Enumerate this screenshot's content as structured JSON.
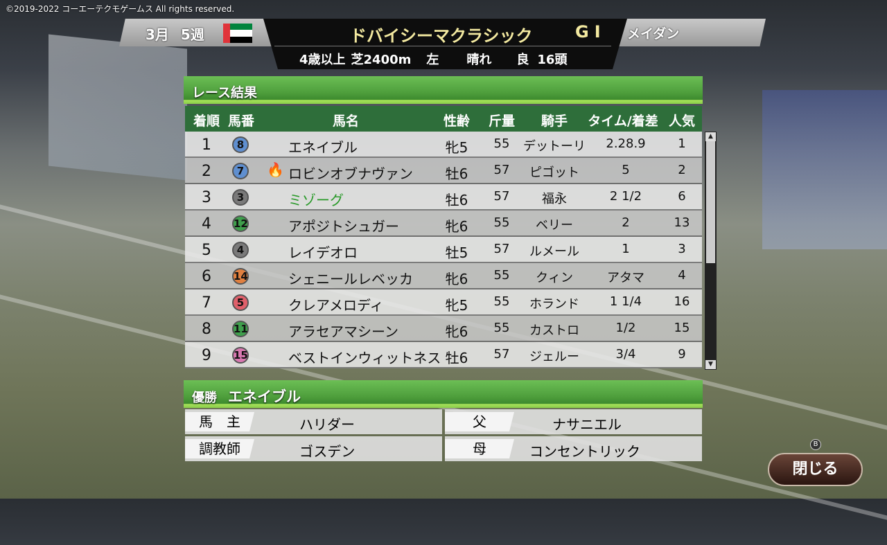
{
  "copyright": "©2019-2022 コーエーテクモゲームス All rights reserved.",
  "header": {
    "month": "3月",
    "week": "5週",
    "race_name": "ドバイシーマクラシック",
    "grade": "GI",
    "venue": "メイダン",
    "conditions": [
      "4歳以上",
      "芝2400m",
      "左",
      "晴れ",
      "良",
      "16頭"
    ]
  },
  "results": {
    "title": "レース結果",
    "columns": [
      "着順",
      "馬番",
      "馬名",
      "性齢",
      "斤量",
      "騎手",
      "タイム/着差",
      "人気"
    ],
    "rows": [
      {
        "rank": "1",
        "num": "8",
        "num_color": "#5f8fd0",
        "name": "エネイブル",
        "sex_age": "牝5",
        "weight": "55",
        "jockey": "デットーリ",
        "time": "2.28.9",
        "pop": "1"
      },
      {
        "rank": "2",
        "num": "7",
        "num_color": "#5f8fd0",
        "name": "ロビンオブナヴァン",
        "sex_age": "牡6",
        "weight": "57",
        "jockey": "ピゴット",
        "time": "5",
        "pop": "2",
        "icon": "fire-icon"
      },
      {
        "rank": "3",
        "num": "3",
        "num_color": "#7a7a7a",
        "name": "ミゾーグ",
        "name_color": "#2a9a2a",
        "sex_age": "牡6",
        "weight": "57",
        "jockey": "福永",
        "time": "2 1/2",
        "pop": "6"
      },
      {
        "rank": "4",
        "num": "12",
        "num_color": "#3f9f4c",
        "name": "アポジトシュガー",
        "sex_age": "牝6",
        "weight": "55",
        "jockey": "ベリー",
        "time": "2",
        "pop": "13"
      },
      {
        "rank": "5",
        "num": "4",
        "num_color": "#7a7a7a",
        "name": "レイデオロ",
        "sex_age": "牡5",
        "weight": "57",
        "jockey": "ルメール",
        "time": "1",
        "pop": "3"
      },
      {
        "rank": "6",
        "num": "14",
        "num_color": "#e08040",
        "name": "シェニールレベッカ",
        "sex_age": "牝6",
        "weight": "55",
        "jockey": "クィン",
        "time": "アタマ",
        "pop": "4"
      },
      {
        "rank": "7",
        "num": "5",
        "num_color": "#e0606a",
        "name": "クレアメロディ",
        "sex_age": "牝5",
        "weight": "55",
        "jockey": "ホランド",
        "time": "1 1/4",
        "pop": "16"
      },
      {
        "rank": "8",
        "num": "11",
        "num_color": "#3f9f4c",
        "name": "アラセアマシーン",
        "sex_age": "牝6",
        "weight": "55",
        "jockey": "カストロ",
        "time": "1/2",
        "pop": "15"
      },
      {
        "rank": "9",
        "num": "15",
        "num_color": "#d878b0",
        "name": "ベストインウィットネス",
        "sex_age": "牡6",
        "weight": "57",
        "jockey": "ジェルー",
        "time": "3/4",
        "pop": "9"
      }
    ]
  },
  "winner": {
    "label": "優勝",
    "name": "エネイブル",
    "owner_label": "馬　主",
    "owner": "ハリダー",
    "trainer_label": "調教師",
    "trainer": "ゴスデン",
    "sire_label": "父",
    "sire": "ナサニエル",
    "dam_label": "母",
    "dam": "コンセントリック"
  },
  "close_button": {
    "label": "閉じる",
    "key": "B"
  }
}
